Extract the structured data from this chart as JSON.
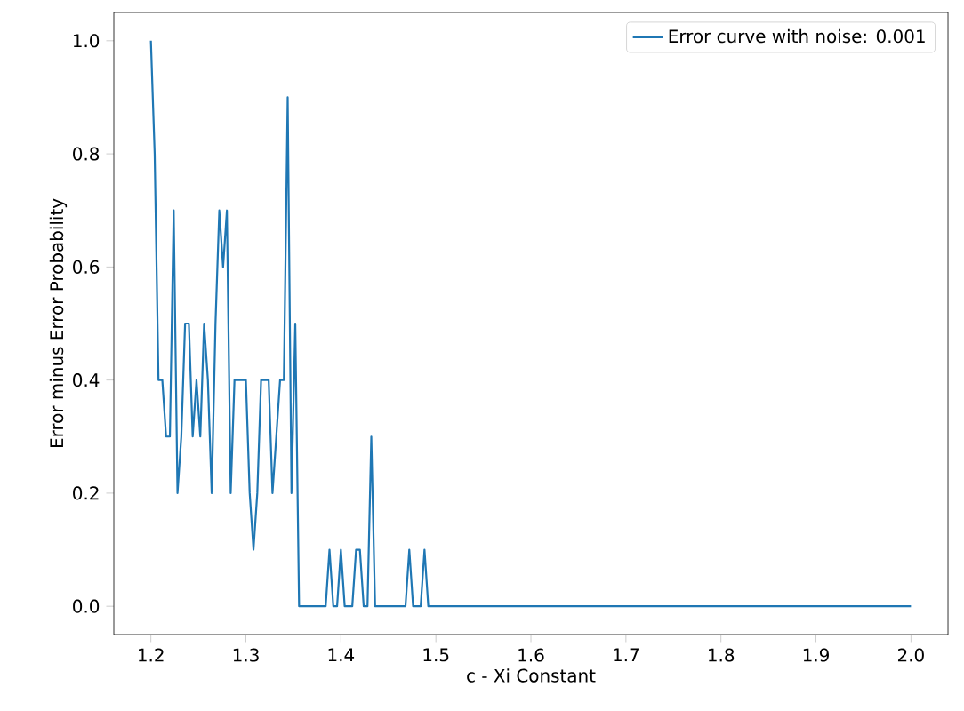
{
  "chart_data": {
    "type": "line",
    "xlabel": "c - Xi Constant",
    "ylabel": "Error minus Error Probability",
    "xlim": [
      1.161,
      2.039
    ],
    "ylim": [
      -0.05,
      1.05
    ],
    "xticks": [
      {
        "value": 1.2,
        "label": "1.2"
      },
      {
        "value": 1.3,
        "label": "1.3"
      },
      {
        "value": 1.4,
        "label": "1.4"
      },
      {
        "value": 1.5,
        "label": "1.5"
      },
      {
        "value": 1.6,
        "label": "1.6"
      },
      {
        "value": 1.7,
        "label": "1.7"
      },
      {
        "value": 1.8,
        "label": "1.8"
      },
      {
        "value": 1.9,
        "label": "1.9"
      },
      {
        "value": 2.0,
        "label": "2.0"
      }
    ],
    "yticks": [
      {
        "value": 0.0,
        "label": "0.0"
      },
      {
        "value": 0.2,
        "label": "0.2"
      },
      {
        "value": 0.4,
        "label": "0.4"
      },
      {
        "value": 0.6,
        "label": "0.6"
      },
      {
        "value": 0.8,
        "label": "0.8"
      },
      {
        "value": 1.0,
        "label": "1.0"
      }
    ],
    "legend": "top right",
    "grid": false,
    "series": [
      {
        "name": "Error curve with noise: 0.001",
        "color": "#1f77b4",
        "x": [
          1.2,
          1.204,
          1.208,
          1.212,
          1.216,
          1.22,
          1.224,
          1.228,
          1.232,
          1.236,
          1.24,
          1.244,
          1.248,
          1.252,
          1.256,
          1.26,
          1.264,
          1.268,
          1.272,
          1.276,
          1.28,
          1.284,
          1.288,
          1.292,
          1.296,
          1.3,
          1.304,
          1.308,
          1.312,
          1.316,
          1.32,
          1.324,
          1.328,
          1.332,
          1.336,
          1.34,
          1.344,
          1.348,
          1.352,
          1.356,
          1.384,
          1.388,
          1.392,
          1.396,
          1.4,
          1.404,
          1.412,
          1.416,
          1.42,
          1.424,
          1.428,
          1.432,
          1.436,
          1.468,
          1.472,
          1.476,
          1.484,
          1.488,
          1.492,
          2.0
        ],
        "values": [
          1.0,
          0.8,
          0.4,
          0.4,
          0.3,
          0.3,
          0.7,
          0.2,
          0.3,
          0.5,
          0.5,
          0.3,
          0.4,
          0.3,
          0.5,
          0.4,
          0.2,
          0.5,
          0.7,
          0.6,
          0.7,
          0.2,
          0.4,
          0.4,
          0.4,
          0.4,
          0.2,
          0.1,
          0.2,
          0.4,
          0.4,
          0.4,
          0.2,
          0.3,
          0.4,
          0.4,
          0.9,
          0.2,
          0.5,
          0.0,
          0.0,
          0.1,
          0.0,
          0.0,
          0.1,
          0.0,
          0.0,
          0.1,
          0.1,
          0.0,
          0.0,
          0.3,
          0.0,
          0.0,
          0.1,
          0.0,
          0.0,
          0.1,
          0.0,
          0.0
        ]
      }
    ]
  }
}
